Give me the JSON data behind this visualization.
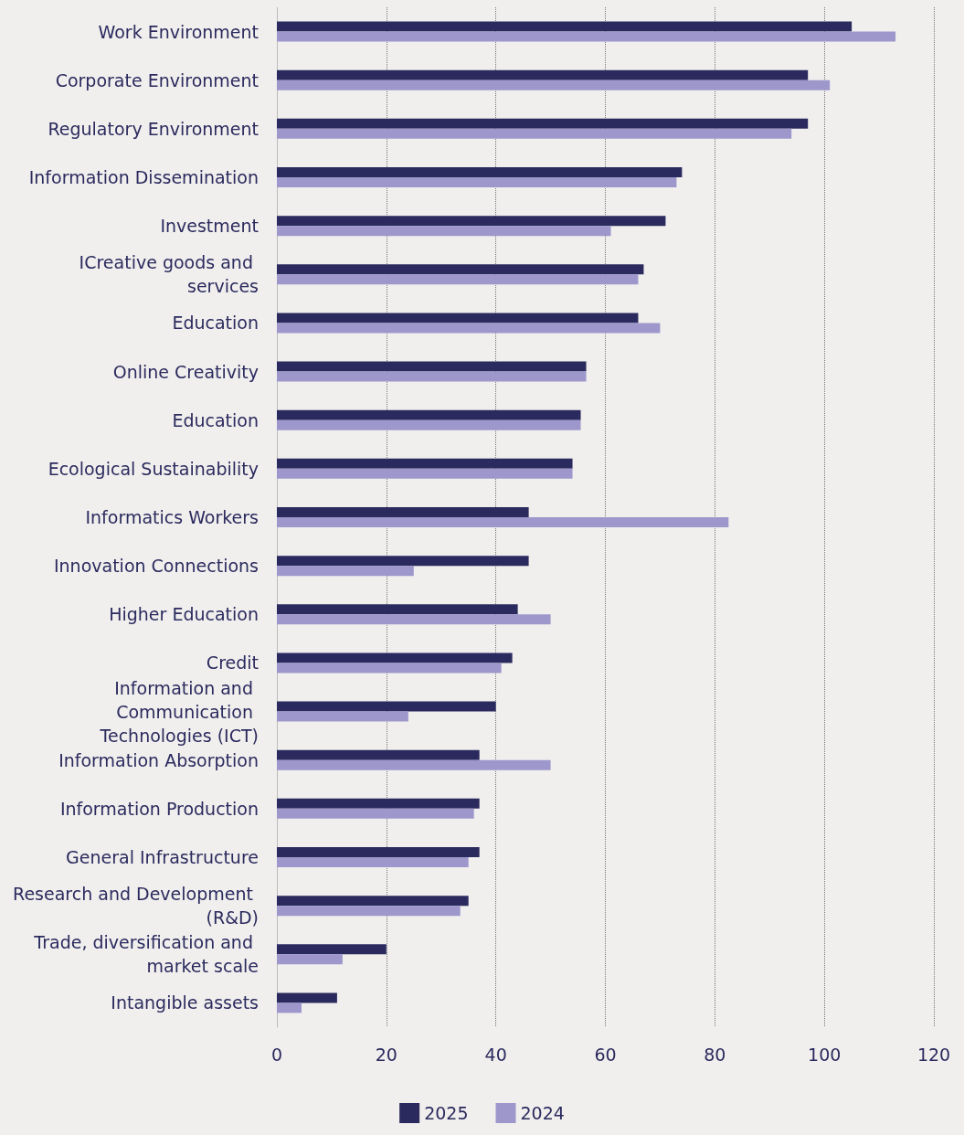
{
  "chart_data": {
    "type": "bar",
    "orientation": "horizontal",
    "categories": [
      "Work Environment",
      "Corporate Environment",
      "Regulatory Environment",
      "Information Dissemination",
      "Investment",
      "ICreative goods and services",
      "Education",
      "Online Creativity",
      "Education",
      "Ecological Sustainability",
      "Informatics Workers",
      "Innovation Connections",
      "Higher Education",
      "Credit",
      "Information and Communication Technologies (ICT)",
      "Information Absorption",
      "Information Production",
      "General Infrastructure",
      "Research and Development (R&D)",
      "Trade, diversification and market scale",
      "Intangible assets"
    ],
    "series": [
      {
        "name": "2025",
        "color": "#2b2a5e",
        "values": [
          105,
          97,
          97,
          74,
          71,
          67,
          66,
          56.5,
          55.5,
          54,
          46,
          46,
          44,
          43,
          40,
          37,
          37,
          37,
          35,
          20,
          11
        ]
      },
      {
        "name": "2024",
        "color": "#9d97cc",
        "values": [
          113,
          101,
          94,
          73,
          61,
          66,
          70,
          56.5,
          55.5,
          54,
          82.5,
          25,
          50,
          41,
          24,
          50,
          36,
          35,
          33.5,
          12,
          4.5
        ]
      }
    ],
    "xlim": [
      0,
      120
    ],
    "xticks": [
      0,
      20,
      40,
      60,
      80,
      100,
      120
    ],
    "grid": "x",
    "legend": "bottom"
  }
}
